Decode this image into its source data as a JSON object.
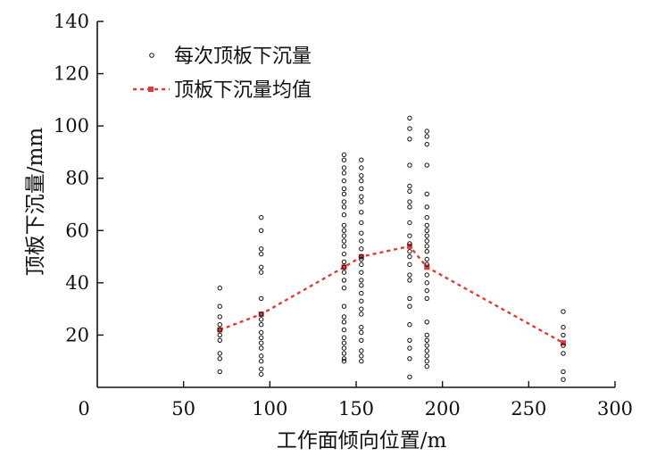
{
  "chart_data": {
    "type": "scatter",
    "xlabel": "工作面倾向位置/m",
    "ylabel": "顶板下沉量/mm",
    "xlim": [
      0,
      300
    ],
    "ylim": [
      0,
      140
    ],
    "xticks": [
      0,
      50,
      100,
      150,
      200,
      250,
      300
    ],
    "yticks": [
      20,
      40,
      60,
      80,
      100,
      120,
      140
    ],
    "grid": false,
    "legend_position": "top-left",
    "series": [
      {
        "name": "每次顶板下沉量",
        "style": "hollow-circle",
        "color": "#111111",
        "points": [
          [
            71,
            38
          ],
          [
            71,
            31
          ],
          [
            71,
            27
          ],
          [
            71,
            24
          ],
          [
            71,
            22
          ],
          [
            71,
            20
          ],
          [
            71,
            18
          ],
          [
            71,
            13
          ],
          [
            71,
            11
          ],
          [
            71,
            6
          ],
          [
            95,
            65
          ],
          [
            95,
            60
          ],
          [
            95,
            53
          ],
          [
            95,
            51
          ],
          [
            95,
            46
          ],
          [
            95,
            44
          ],
          [
            95,
            34
          ],
          [
            95,
            28
          ],
          [
            95,
            26
          ],
          [
            95,
            24
          ],
          [
            95,
            21
          ],
          [
            95,
            19
          ],
          [
            95,
            17
          ],
          [
            95,
            15
          ],
          [
            95,
            12
          ],
          [
            95,
            10
          ],
          [
            95,
            7
          ],
          [
            95,
            5
          ],
          [
            143,
            89
          ],
          [
            143,
            87
          ],
          [
            143,
            84
          ],
          [
            143,
            82
          ],
          [
            143,
            79
          ],
          [
            143,
            76
          ],
          [
            143,
            74
          ],
          [
            143,
            71
          ],
          [
            143,
            69
          ],
          [
            143,
            66
          ],
          [
            143,
            62
          ],
          [
            143,
            60
          ],
          [
            143,
            58
          ],
          [
            143,
            56
          ],
          [
            143,
            54
          ],
          [
            143,
            51
          ],
          [
            143,
            48
          ],
          [
            143,
            46
          ],
          [
            143,
            44
          ],
          [
            143,
            41
          ],
          [
            143,
            38
          ],
          [
            143,
            31
          ],
          [
            143,
            27
          ],
          [
            143,
            25
          ],
          [
            143,
            22
          ],
          [
            143,
            19
          ],
          [
            143,
            17
          ],
          [
            143,
            15
          ],
          [
            143,
            13
          ],
          [
            143,
            11
          ],
          [
            143,
            10
          ],
          [
            153,
            87
          ],
          [
            153,
            84
          ],
          [
            153,
            81
          ],
          [
            153,
            79
          ],
          [
            153,
            76
          ],
          [
            153,
            73
          ],
          [
            153,
            71
          ],
          [
            153,
            67
          ],
          [
            153,
            63
          ],
          [
            153,
            59
          ],
          [
            153,
            56
          ],
          [
            153,
            53
          ],
          [
            153,
            50
          ],
          [
            153,
            49
          ],
          [
            153,
            47
          ],
          [
            153,
            44
          ],
          [
            153,
            41
          ],
          [
            153,
            39
          ],
          [
            153,
            36
          ],
          [
            153,
            33
          ],
          [
            153,
            30
          ],
          [
            153,
            28
          ],
          [
            153,
            23
          ],
          [
            153,
            21
          ],
          [
            153,
            18
          ],
          [
            153,
            14
          ],
          [
            153,
            12
          ],
          [
            153,
            10
          ],
          [
            181,
            103
          ],
          [
            181,
            99
          ],
          [
            181,
            95
          ],
          [
            181,
            85
          ],
          [
            181,
            77
          ],
          [
            181,
            75
          ],
          [
            181,
            71
          ],
          [
            181,
            69
          ],
          [
            181,
            63
          ],
          [
            181,
            58
          ],
          [
            181,
            55
          ],
          [
            181,
            52
          ],
          [
            181,
            50
          ],
          [
            181,
            47
          ],
          [
            181,
            43
          ],
          [
            181,
            41
          ],
          [
            181,
            34
          ],
          [
            181,
            31
          ],
          [
            181,
            24
          ],
          [
            181,
            18
          ],
          [
            181,
            15
          ],
          [
            181,
            11
          ],
          [
            181,
            4
          ],
          [
            191,
            98
          ],
          [
            191,
            96
          ],
          [
            191,
            93
          ],
          [
            191,
            85
          ],
          [
            191,
            74
          ],
          [
            191,
            69
          ],
          [
            191,
            65
          ],
          [
            191,
            62
          ],
          [
            191,
            60
          ],
          [
            191,
            58
          ],
          [
            191,
            56
          ],
          [
            191,
            54
          ],
          [
            191,
            52
          ],
          [
            191,
            49
          ],
          [
            191,
            47
          ],
          [
            191,
            43
          ],
          [
            191,
            40
          ],
          [
            191,
            37
          ],
          [
            191,
            34
          ],
          [
            191,
            25
          ],
          [
            191,
            20
          ],
          [
            191,
            18
          ],
          [
            191,
            16
          ],
          [
            191,
            14
          ],
          [
            191,
            12
          ],
          [
            191,
            10
          ],
          [
            191,
            8
          ],
          [
            270,
            29
          ],
          [
            270,
            23
          ],
          [
            270,
            20
          ],
          [
            270,
            16
          ],
          [
            270,
            13
          ],
          [
            270,
            6
          ],
          [
            270,
            3
          ]
        ]
      },
      {
        "name": "顶板下沉量均值",
        "style": "dashed-line-square-marker",
        "color": "#e23a3a",
        "points": [
          [
            71,
            22
          ],
          [
            95,
            28
          ],
          [
            143,
            46
          ],
          [
            153,
            50
          ],
          [
            181,
            54
          ],
          [
            191,
            46
          ],
          [
            270,
            17
          ]
        ]
      }
    ]
  }
}
